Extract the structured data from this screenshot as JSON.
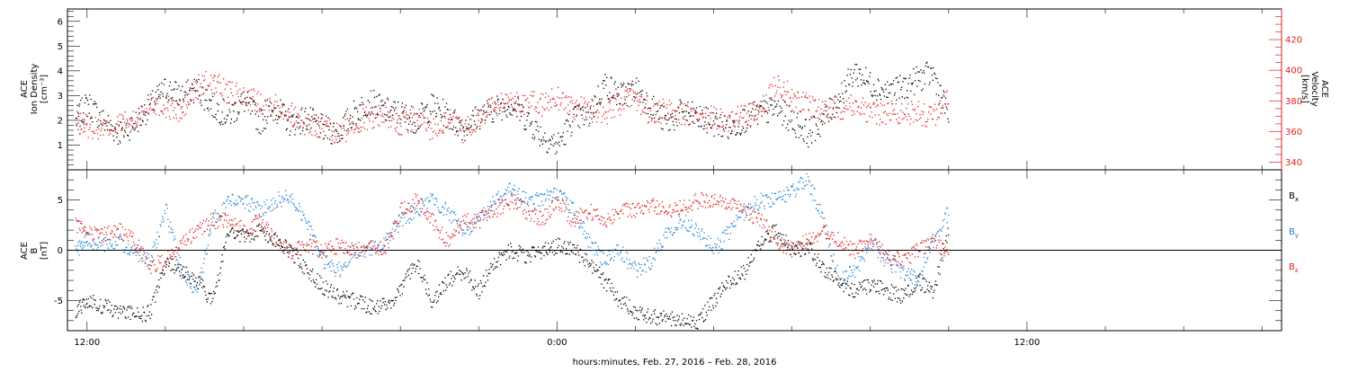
{
  "colors": {
    "black": "#000000",
    "red": "#e0201e",
    "blue": "#1f7fd0"
  },
  "xaxis": {
    "label": "hours:minutes, Feb. 27, 2016 – Feb. 28, 2016",
    "range_hours": [
      11.5,
      42.5
    ],
    "tick_labels": [
      {
        "hour": 12,
        "label": "12:00"
      },
      {
        "hour": 24,
        "label": "0:00"
      },
      {
        "hour": 36,
        "label": "12:00"
      }
    ]
  },
  "panels": {
    "density": {
      "ylabel_left": [
        "ACE",
        "Ion Density",
        "[cm⁻³]"
      ],
      "ylabel_right": [
        "ACE",
        "Velocity",
        "[km/s]"
      ],
      "left_range": [
        0,
        6.5
      ],
      "left_ticks": [
        "1",
        "2",
        "3",
        "4",
        "5",
        "6"
      ],
      "right_range": [
        335,
        440
      ],
      "right_ticks": [
        "340",
        "360",
        "380",
        "400",
        "420"
      ]
    },
    "bfield": {
      "ylabel": [
        "ACE",
        "B",
        "[nT]"
      ],
      "range": [
        -8,
        8
      ],
      "ticks": [
        "-5",
        "0",
        "5"
      ],
      "legend": [
        {
          "main": "B",
          "sub": "x",
          "color": "#000000"
        },
        {
          "main": "B",
          "sub": "y",
          "color": "#1f7fd0"
        },
        {
          "main": "B",
          "sub": "z",
          "color": "#e0201e"
        }
      ]
    }
  },
  "chart_data": [
    {
      "type": "scatter",
      "title": "",
      "xlabel": "hours:minutes, Feb. 27, 2016 – Feb. 28, 2016",
      "ylabel": "ACE Ion Density [cm⁻³] / ACE Velocity [km/s]",
      "xlim": [
        11.5,
        42.5
      ],
      "series": [
        {
          "name": "ACE Ion Density",
          "axis": "left",
          "color": "#000000",
          "x": [
            11.7,
            12.0,
            12.4,
            12.8,
            13.2,
            13.6,
            14.0,
            14.4,
            14.8,
            15.2,
            15.6,
            16.0,
            16.4,
            16.8,
            17.2,
            17.6,
            18.0,
            18.4,
            18.8,
            19.2,
            19.6,
            20.0,
            20.4,
            20.8,
            21.2,
            21.6,
            22.0,
            22.4,
            22.8,
            23.2,
            23.6,
            24.0,
            24.4,
            24.8,
            25.2,
            25.6,
            26.0,
            26.4,
            26.8,
            27.2,
            27.6,
            28.0,
            28.4,
            28.8,
            29.2,
            29.6,
            30.0,
            30.4,
            30.8,
            31.2,
            31.6,
            32.0,
            32.4,
            32.8,
            33.2,
            33.6,
            34.0
          ],
          "y": [
            2.0,
            2.7,
            2.0,
            1.5,
            1.9,
            2.6,
            3.3,
            3.0,
            3.3,
            2.6,
            2.2,
            2.8,
            2.0,
            2.5,
            1.9,
            2.1,
            1.7,
            1.5,
            2.3,
            2.8,
            2.4,
            2.3,
            2.0,
            2.6,
            2.2,
            1.7,
            2.2,
            2.5,
            2.7,
            2.1,
            1.4,
            1.0,
            2.1,
            2.2,
            3.5,
            3.0,
            3.3,
            2.6,
            1.9,
            2.4,
            2.1,
            1.9,
            1.7,
            2.1,
            2.3,
            2.5,
            2.0,
            1.5,
            2.0,
            3.0,
            4.0,
            3.5,
            3.2,
            3.3,
            3.7,
            3.9,
            2.1
          ]
        },
        {
          "name": "ACE Velocity",
          "axis": "right",
          "color": "#e0201e",
          "x": [
            11.7,
            12.0,
            12.4,
            12.8,
            13.2,
            13.6,
            14.0,
            14.4,
            14.8,
            15.2,
            15.6,
            16.0,
            16.4,
            16.8,
            17.2,
            17.6,
            18.0,
            18.4,
            18.8,
            19.2,
            19.6,
            20.0,
            20.4,
            20.8,
            21.2,
            21.6,
            22.0,
            22.4,
            22.8,
            23.2,
            23.6,
            24.0,
            24.4,
            24.8,
            25.2,
            25.6,
            26.0,
            26.4,
            26.8,
            27.2,
            27.6,
            28.0,
            28.4,
            28.8,
            29.2,
            29.6,
            30.0,
            30.4,
            30.8,
            31.2,
            31.6,
            32.0,
            32.4,
            32.8,
            33.2,
            33.6,
            34.0
          ],
          "y": [
            366,
            364,
            363,
            365,
            366,
            380,
            377,
            372,
            390,
            393,
            385,
            383,
            380,
            378,
            372,
            365,
            362,
            358,
            365,
            370,
            372,
            364,
            370,
            362,
            369,
            360,
            370,
            378,
            381,
            379,
            378,
            383,
            376,
            374,
            372,
            379,
            382,
            370,
            375,
            372,
            367,
            370,
            367,
            371,
            373,
            393,
            382,
            378,
            374,
            376,
            379,
            372,
            373,
            372,
            373,
            369,
            385
          ]
        }
      ],
      "left_ylim": [
        0,
        6.5
      ],
      "right_ylim": [
        335,
        440
      ],
      "grid": false,
      "legend": "none"
    },
    {
      "type": "scatter",
      "title": "",
      "xlabel": "hours:minutes, Feb. 27, 2016 – Feb. 28, 2016",
      "ylabel": "ACE B [nT]",
      "xlim": [
        11.5,
        42.5
      ],
      "ylim": [
        -8,
        8
      ],
      "series": [
        {
          "name": "Bx",
          "color": "#000000",
          "x": [
            11.7,
            12.0,
            12.4,
            12.8,
            13.2,
            13.6,
            14.0,
            14.4,
            14.8,
            15.2,
            15.6,
            16.0,
            16.4,
            16.8,
            17.2,
            17.6,
            18.0,
            18.4,
            18.8,
            19.2,
            19.6,
            20.0,
            20.4,
            20.8,
            21.2,
            21.6,
            22.0,
            22.4,
            22.8,
            23.2,
            23.6,
            24.0,
            24.4,
            24.8,
            25.2,
            25.6,
            26.0,
            26.4,
            26.8,
            27.2,
            27.6,
            28.0,
            28.4,
            28.8,
            29.2,
            29.6,
            30.0,
            30.4,
            30.8,
            31.2,
            31.6,
            32.0,
            32.4,
            32.8,
            33.2,
            33.6,
            34.0
          ],
          "y": [
            -6,
            -5,
            -5.5,
            -6,
            -6.3,
            -6.2,
            -1,
            -2,
            -3,
            -5,
            2,
            1.5,
            2,
            1,
            0,
            -2,
            -3.5,
            -4.5,
            -5,
            -5.5,
            -5.5,
            -4,
            -1,
            -5,
            -3,
            -2,
            -4,
            -1,
            0,
            -0.5,
            0,
            0.5,
            0,
            -1,
            -3,
            -5,
            -6,
            -6.5,
            -6.8,
            -7,
            -7,
            -5,
            -3,
            -2,
            1,
            2,
            0,
            0.5,
            -2,
            -3,
            -4,
            -3.5,
            -4,
            -4.5,
            -3,
            -4,
            2
          ]
        },
        {
          "name": "By",
          "color": "#1f7fd0",
          "x": [
            11.7,
            12.0,
            12.4,
            12.8,
            13.2,
            13.6,
            14.0,
            14.4,
            14.8,
            15.2,
            15.6,
            16.0,
            16.4,
            16.8,
            17.2,
            17.6,
            18.0,
            18.4,
            18.8,
            19.2,
            19.6,
            20.0,
            20.4,
            20.8,
            21.2,
            21.6,
            22.0,
            22.4,
            22.8,
            23.2,
            23.6,
            24.0,
            24.4,
            24.8,
            25.2,
            25.6,
            26.0,
            26.4,
            26.8,
            27.2,
            27.6,
            28.0,
            28.4,
            28.8,
            29.2,
            29.6,
            30.0,
            30.4,
            30.8,
            31.2,
            31.6,
            32.0,
            32.4,
            32.8,
            33.2,
            33.6,
            34.0
          ],
          "y": [
            0,
            1,
            0.5,
            1,
            0,
            -1,
            4,
            -2,
            -4,
            3,
            5,
            5,
            4,
            5,
            5.5,
            3,
            -1,
            -2,
            0,
            0,
            1,
            3,
            4,
            5,
            4,
            2,
            3,
            5,
            6,
            5,
            5,
            6,
            4,
            1,
            -1,
            0,
            -2,
            -1,
            2,
            3,
            2,
            0,
            2,
            4,
            5,
            5,
            6,
            7,
            3,
            -3,
            -2,
            1,
            -1,
            -2,
            -3,
            1,
            4
          ]
        },
        {
          "name": "Bz",
          "color": "#e0201e",
          "x": [
            11.7,
            12.0,
            12.4,
            12.8,
            13.2,
            13.6,
            14.0,
            14.4,
            14.8,
            15.2,
            15.6,
            16.0,
            16.4,
            16.8,
            17.2,
            17.6,
            18.0,
            18.4,
            18.8,
            19.2,
            19.6,
            20.0,
            20.4,
            20.8,
            21.2,
            21.6,
            22.0,
            22.4,
            22.8,
            23.2,
            23.6,
            24.0,
            24.4,
            24.8,
            25.2,
            25.6,
            26.0,
            26.4,
            26.8,
            27.2,
            27.6,
            28.0,
            28.4,
            28.8,
            29.2,
            29.6,
            30.0,
            30.4,
            30.8,
            31.2,
            31.6,
            32.0,
            32.4,
            32.8,
            33.2,
            33.6,
            34.0
          ],
          "y": [
            2.5,
            2,
            1.5,
            2,
            1,
            -1.5,
            -1,
            0.5,
            2,
            3,
            3,
            2,
            3,
            1,
            0,
            0.5,
            0,
            0.5,
            0,
            0.5,
            0,
            4,
            5,
            3,
            1,
            3,
            3,
            4,
            5,
            4,
            3,
            5,
            3,
            4,
            3,
            4,
            4,
            4.5,
            4,
            4.5,
            5,
            5,
            4.5,
            4,
            3,
            1,
            0,
            1,
            2,
            1,
            0,
            1,
            -0.5,
            -1,
            0,
            1,
            -0.5
          ]
        }
      ],
      "grid": false,
      "legend": "right"
    }
  ]
}
